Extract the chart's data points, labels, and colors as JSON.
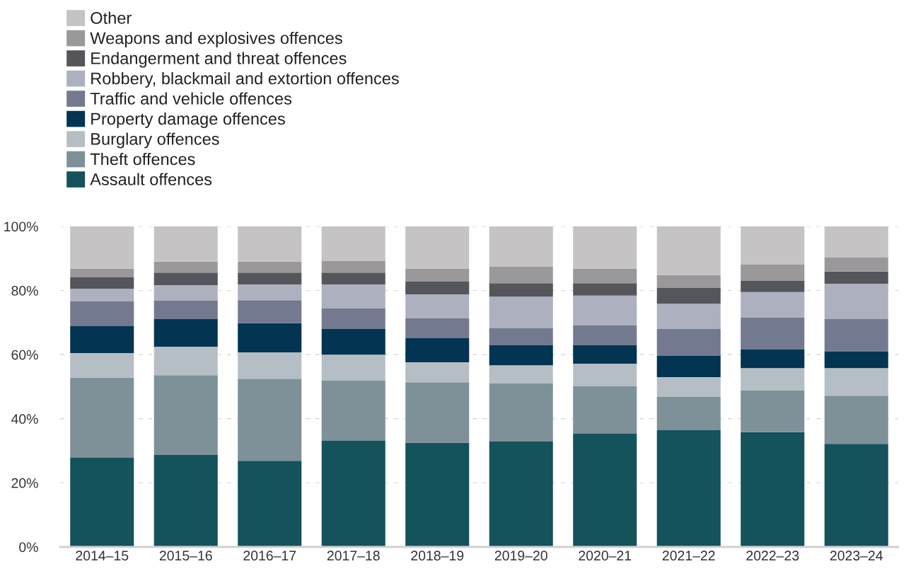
{
  "chart_data": {
    "type": "bar",
    "stacked": true,
    "categories": [
      "2014–15",
      "2015–16",
      "2016–17",
      "2017–18",
      "2018–19",
      "2019–20",
      "2020–21",
      "2021–22",
      "2022–23",
      "2023–24"
    ],
    "series": [
      {
        "name": "Assault offences",
        "color": "#14525c",
        "values": [
          27.8,
          28.7,
          26.9,
          33.1,
          32.5,
          32.9,
          35.3,
          36.4,
          35.8,
          32.2
        ]
      },
      {
        "name": "Theft offences",
        "color": "#7e9198",
        "values": [
          25.0,
          24.9,
          25.6,
          18.8,
          18.9,
          18.1,
          14.8,
          10.4,
          13.0,
          15.0
        ]
      },
      {
        "name": "Burglary offences",
        "color": "#b6bec5",
        "values": [
          7.7,
          8.9,
          8.2,
          8.1,
          6.2,
          5.7,
          7.1,
          6.2,
          7.0,
          8.6
        ]
      },
      {
        "name": "Property damage offences",
        "color": "#033452",
        "values": [
          8.4,
          8.6,
          9.1,
          8.0,
          7.5,
          6.2,
          5.7,
          6.6,
          5.8,
          5.1
        ]
      },
      {
        "name": "Traffic and vehicle offences",
        "color": "#737a8f",
        "values": [
          7.7,
          5.7,
          7.2,
          6.4,
          6.2,
          5.3,
          6.2,
          8.4,
          9.9,
          10.2
        ]
      },
      {
        "name": "Robbery, blackmail and extortion offences",
        "color": "#adb0bf",
        "values": [
          4.0,
          4.9,
          4.9,
          7.5,
          7.5,
          9.9,
          9.3,
          7.9,
          8.0,
          11.0
        ]
      },
      {
        "name": "Endangerment and threat offences",
        "color": "#55565b",
        "values": [
          3.5,
          3.9,
          3.7,
          3.7,
          4.0,
          4.2,
          3.9,
          4.9,
          3.5,
          3.8
        ]
      },
      {
        "name": "Weapons and explosives offences",
        "color": "#9a989b",
        "values": [
          2.7,
          3.4,
          3.4,
          3.6,
          4.0,
          5.1,
          4.5,
          4.0,
          5.1,
          4.4
        ]
      },
      {
        "name": "Other",
        "color": "#c5c3c4",
        "values": [
          13.2,
          11.0,
          11.0,
          10.8,
          13.2,
          12.6,
          13.2,
          15.2,
          11.9,
          9.7
        ]
      }
    ],
    "ylim": [
      0,
      100
    ],
    "yticks": [
      {
        "value": 0,
        "label": "0%"
      },
      {
        "value": 20,
        "label": "20%"
      },
      {
        "value": 40,
        "label": "40%"
      },
      {
        "value": 60,
        "label": "60%"
      },
      {
        "value": 80,
        "label": "80%"
      },
      {
        "value": 100,
        "label": "100%"
      }
    ],
    "grid": "y",
    "legend": "top left"
  }
}
